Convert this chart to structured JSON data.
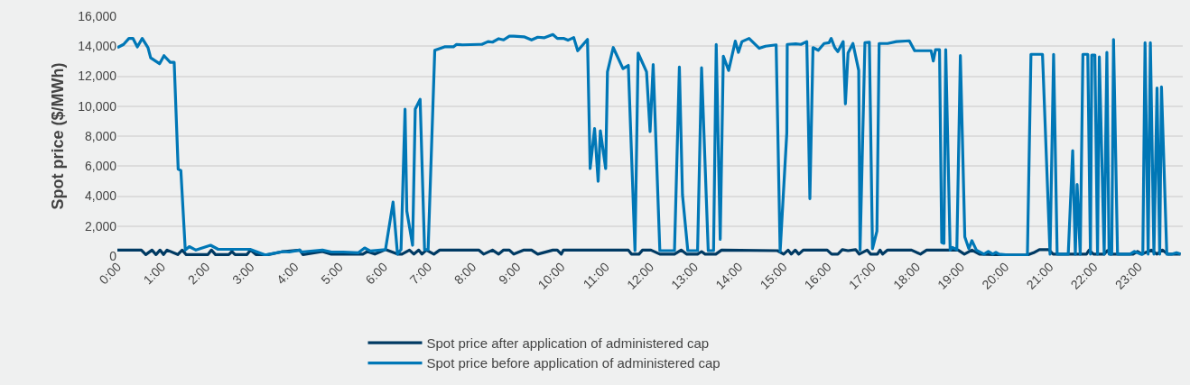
{
  "chart_data": {
    "type": "line",
    "ylabel": "Spot price ($/MWh)",
    "xlim": [
      0,
      24
    ],
    "xticks": [
      {
        "value": 0,
        "label": "0:00"
      },
      {
        "value": 1,
        "label": "1:00"
      },
      {
        "value": 2,
        "label": "2:00"
      },
      {
        "value": 3,
        "label": "3:00"
      },
      {
        "value": 4,
        "label": "4:00"
      },
      {
        "value": 5,
        "label": "5:00"
      },
      {
        "value": 6,
        "label": "6:00"
      },
      {
        "value": 7,
        "label": "7:00"
      },
      {
        "value": 8,
        "label": "8:00"
      },
      {
        "value": 9,
        "label": "9:00"
      },
      {
        "value": 10,
        "label": "10:00"
      },
      {
        "value": 11,
        "label": "11:00"
      },
      {
        "value": 12,
        "label": "12:00"
      },
      {
        "value": 13,
        "label": "13:00"
      },
      {
        "value": 14,
        "label": "14:00"
      },
      {
        "value": 15,
        "label": "15:00"
      },
      {
        "value": 16,
        "label": "16:00"
      },
      {
        "value": 17,
        "label": "17:00"
      },
      {
        "value": 18,
        "label": "18:00"
      },
      {
        "value": 19,
        "label": "19:00"
      },
      {
        "value": 20,
        "label": "20:00"
      },
      {
        "value": 21,
        "label": "21:00"
      },
      {
        "value": 22,
        "label": "22:00"
      },
      {
        "value": 23,
        "label": "23:00"
      }
    ],
    "ylim": [
      0,
      16000
    ],
    "yticks": [
      0,
      {
        "value": 2000,
        "label": "2,000"
      },
      {
        "value": 4000,
        "label": "4,000"
      },
      {
        "value": 6000,
        "label": "6,000"
      },
      {
        "value": 8000,
        "label": "8,000"
      },
      {
        "value": 10000,
        "label": "10,000"
      },
      {
        "value": 12000,
        "label": "12,000"
      },
      {
        "value": 14000,
        "label": "14,000"
      },
      {
        "value": 16000,
        "label": "16,000"
      }
    ],
    "grid": "y",
    "legend": "bottom",
    "marker": "none",
    "line_style": "solid",
    "series": [
      {
        "name": "Spot price after application of administered cap",
        "color": "#003a63",
        "x": [
          0,
          0.54,
          0.64,
          0.78,
          0.87,
          0.96,
          1.04,
          1.12,
          1.36,
          1.46,
          1.55,
          2.04,
          2.12,
          2.21,
          2.51,
          2.58,
          2.65,
          2.92,
          3.0,
          3.12,
          3.33,
          3.73,
          4.11,
          4.18,
          4.62,
          4.82,
          5.53,
          5.63,
          5.8,
          6.04,
          6.31,
          6.41,
          6.58,
          6.68,
          6.79,
          6.86,
          6.96,
          7.13,
          7.26,
          8.14,
          8.25,
          8.45,
          8.59,
          8.7,
          8.83,
          8.93,
          9.16,
          9.33,
          9.47,
          9.81,
          9.91,
          10.0,
          10.05,
          10.15,
          11.51,
          11.58,
          11.75,
          11.83,
          12.02,
          12.22,
          12.55,
          12.7,
          12.82,
          13.07,
          13.16,
          13.24,
          13.48,
          13.61,
          14.87,
          15.01,
          15.11,
          15.18,
          15.27,
          15.35,
          15.45,
          15.99,
          16.09,
          16.23,
          16.33,
          16.46,
          16.63,
          16.71,
          16.89,
          16.97,
          17.12,
          17.18,
          17.24,
          17.35,
          17.89,
          18.09,
          18.23,
          18.94,
          19.08,
          19.25,
          19.42,
          20.06,
          20.5,
          20.64,
          20.77,
          20.98,
          21.08,
          21.83,
          21.89,
          21.99,
          22.23,
          22.3,
          22.37,
          22.88,
          22.98,
          23.08,
          23.29,
          23.42,
          23.54,
          23.66,
          23.95
        ],
        "values": [
          400,
          400,
          100,
          400,
          100,
          400,
          100,
          400,
          100,
          400,
          100,
          100,
          400,
          100,
          100,
          300,
          100,
          100,
          400,
          100,
          50,
          300,
          400,
          100,
          300,
          130,
          130,
          300,
          130,
          430,
          130,
          130,
          400,
          130,
          400,
          130,
          400,
          130,
          400,
          400,
          130,
          400,
          130,
          400,
          400,
          130,
          400,
          400,
          130,
          400,
          400,
          130,
          400,
          400,
          400,
          130,
          130,
          400,
          400,
          130,
          130,
          400,
          130,
          130,
          300,
          130,
          130,
          400,
          360,
          130,
          400,
          130,
          400,
          130,
          400,
          400,
          130,
          130,
          430,
          360,
          430,
          130,
          400,
          130,
          130,
          400,
          130,
          400,
          400,
          130,
          400,
          400,
          130,
          400,
          130,
          70,
          70,
          220,
          430,
          430,
          130,
          130,
          400,
          130,
          130,
          360,
          130,
          130,
          310,
          130,
          400,
          130,
          400,
          130,
          130
        ]
      },
      {
        "name": "Spot price before application of administered cap",
        "color": "#0077b6",
        "x": [
          0,
          0.14,
          0.26,
          0.35,
          0.45,
          0.56,
          0.69,
          0.75,
          0.95,
          1.05,
          1.19,
          1.28,
          1.37,
          1.43,
          1.53,
          1.62,
          1.77,
          2.1,
          2.27,
          2.99,
          3.33,
          3.73,
          3.87,
          4.11,
          4.14,
          4.62,
          4.82,
          5.09,
          5.43,
          5.57,
          5.7,
          6.04,
          6.21,
          6.31,
          6.39,
          6.48,
          6.52,
          6.65,
          6.71,
          6.82,
          6.92,
          7.0,
          7.15,
          7.37,
          7.57,
          7.64,
          7.77,
          8.14,
          8.21,
          8.35,
          8.45,
          8.59,
          8.7,
          8.83,
          8.93,
          9.16,
          9.33,
          9.47,
          9.61,
          9.81,
          9.91,
          10.05,
          10.15,
          10.28,
          10.37,
          10.59,
          10.65,
          10.75,
          10.83,
          10.88,
          11.0,
          11.04,
          11.17,
          11.39,
          11.51,
          11.66,
          11.73,
          11.92,
          12.0,
          12.07,
          12.22,
          12.55,
          12.66,
          12.73,
          12.85,
          13.07,
          13.16,
          13.31,
          13.43,
          13.49,
          13.58,
          13.65,
          13.77,
          13.92,
          13.99,
          14.07,
          14.23,
          14.46,
          14.6,
          14.84,
          14.93,
          15.08,
          15.09,
          15.28,
          15.4,
          15.53,
          15.6,
          15.67,
          15.79,
          15.92,
          16.03,
          16.08,
          16.16,
          16.23,
          16.35,
          16.4,
          16.46,
          16.57,
          16.7,
          16.73,
          16.84,
          16.94,
          17.01,
          17.11,
          17.16,
          17.35,
          17.55,
          17.84,
          17.96,
          18.33,
          18.38,
          18.43,
          18.52,
          18.57,
          18.62,
          18.66,
          18.76,
          18.81,
          18.91,
          18.99,
          19.09,
          19.18,
          19.25,
          19.35,
          19.52,
          19.62,
          19.72,
          19.79,
          19.86,
          19.96,
          20.06,
          20.5,
          20.58,
          20.84,
          21.01,
          21.09,
          21.17,
          21.42,
          21.52,
          21.58,
          21.62,
          21.69,
          21.75,
          21.86,
          21.92,
          21.95,
          22.02,
          22.08,
          22.12,
          22.23,
          22.29,
          22.34,
          22.4,
          22.44,
          22.53,
          22.81,
          22.91,
          23.05,
          23.1,
          23.15,
          23.22,
          23.27,
          23.35,
          23.42,
          23.48,
          23.52,
          23.64,
          23.76,
          23.86,
          23.95
        ],
        "values": [
          13900,
          14120,
          14520,
          14520,
          13950,
          14520,
          13900,
          13230,
          12830,
          13370,
          12920,
          12920,
          5800,
          5710,
          400,
          630,
          400,
          720,
          450,
          450,
          70,
          300,
          270,
          400,
          270,
          400,
          270,
          270,
          220,
          540,
          340,
          430,
          3600,
          130,
          430,
          9800,
          3000,
          720,
          9800,
          10450,
          430,
          430,
          13730,
          13960,
          13960,
          14120,
          14090,
          14120,
          14120,
          14310,
          14270,
          14500,
          14420,
          14670,
          14670,
          14630,
          14420,
          14600,
          14560,
          14780,
          14520,
          14520,
          14400,
          14580,
          13700,
          14450,
          5840,
          8500,
          4990,
          8360,
          5840,
          12290,
          13910,
          12500,
          12720,
          360,
          13550,
          12290,
          8310,
          12780,
          360,
          360,
          12610,
          4090,
          360,
          360,
          12560,
          360,
          360,
          14120,
          1120,
          13330,
          12380,
          14340,
          13590,
          14310,
          14520,
          13860,
          14000,
          14090,
          310,
          8220,
          14120,
          14160,
          14120,
          14310,
          3830,
          13910,
          13730,
          14180,
          14230,
          14520,
          13910,
          13640,
          14310,
          10160,
          13550,
          14180,
          12380,
          400,
          14230,
          14270,
          490,
          1660,
          14180,
          14180,
          14310,
          14360,
          13700,
          13700,
          13010,
          13770,
          13770,
          900,
          850,
          13770,
          400,
          580,
          430,
          13370,
          1280,
          490,
          1030,
          400,
          130,
          310,
          130,
          250,
          130,
          100,
          70,
          70,
          13460,
          13460,
          130,
          13460,
          130,
          130,
          7030,
          130,
          4770,
          130,
          13460,
          13460,
          130,
          13410,
          13410,
          130,
          13280,
          130,
          13590,
          130,
          130,
          14450,
          130,
          130,
          310,
          130,
          130,
          14230,
          130,
          14230,
          130,
          11210,
          130,
          11280,
          130,
          130,
          220,
          130
        ]
      }
    ]
  }
}
